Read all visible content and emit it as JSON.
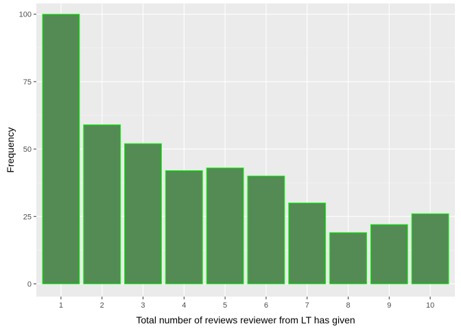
{
  "chart_data": {
    "type": "bar",
    "title": "",
    "xlabel": "Total number of reviews reviewer from LT has given",
    "ylabel": "Frequency",
    "categories": [
      "1",
      "2",
      "3",
      "4",
      "5",
      "6",
      "7",
      "8",
      "9",
      "10"
    ],
    "values": [
      100,
      59,
      52,
      42,
      43,
      40,
      30,
      19,
      22,
      26
    ],
    "ylim": [
      0,
      104
    ],
    "yticks": [
      0,
      25,
      50,
      75,
      100
    ],
    "grid": true,
    "legend": "none",
    "colors": {
      "bar_fill": "#548b54",
      "bar_outline": "#00ff00",
      "panel_background": "#ebebeb",
      "grid_major": "#ffffff",
      "grid_minor": "#f5f5f5"
    }
  }
}
